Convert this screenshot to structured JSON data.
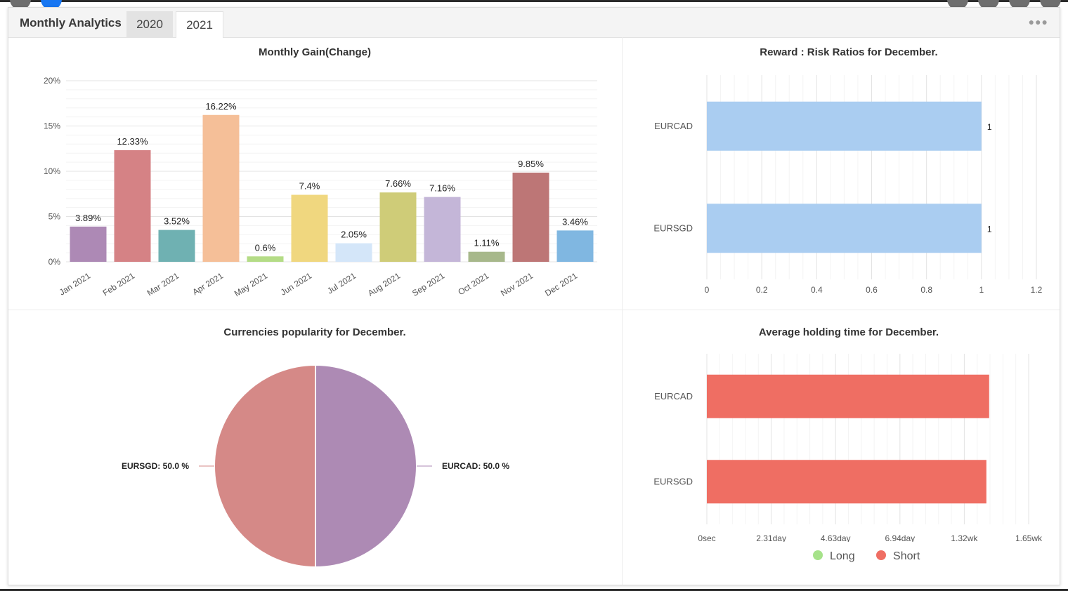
{
  "header": {
    "title": "Monthly Analytics",
    "tabs": [
      {
        "label": "2020",
        "active": false
      },
      {
        "label": "2021",
        "active": true
      }
    ]
  },
  "colors": {
    "pie_eursgd": "#d58987",
    "pie_eurcad": "#ad8ab4",
    "reward_bar": "#aacdf1",
    "holding_short": "#ef6e63",
    "legend_long": "#a6e28a",
    "legend_short": "#ef6e63"
  },
  "chart_data": [
    {
      "type": "bar",
      "title": "Monthly Gain(Change)",
      "categories": [
        "Jan 2021",
        "Feb 2021",
        "Mar 2021",
        "Apr 2021",
        "May 2021",
        "Jun 2021",
        "Jul 2021",
        "Aug 2021",
        "Sep 2021",
        "Oct 2021",
        "Nov 2021",
        "Dec 2021"
      ],
      "values": [
        3.89,
        12.33,
        3.52,
        16.22,
        0.6,
        7.4,
        2.05,
        7.66,
        7.16,
        1.11,
        9.85,
        3.46
      ],
      "data_labels": [
        "3.89%",
        "12.33%",
        "3.52%",
        "16.22%",
        "0.6%",
        "7.4%",
        "2.05%",
        "7.66%",
        "7.16%",
        "1.11%",
        "9.85%",
        "3.46%"
      ],
      "colors": [
        "#ad89b5",
        "#d58285",
        "#6fb1b2",
        "#f5bf98",
        "#b4dc86",
        "#f0d77f",
        "#d4e6f9",
        "#cfcc78",
        "#c4b6d8",
        "#a7b88b",
        "#bd7676",
        "#80b7e1"
      ],
      "yticks": [
        "0%",
        "5%",
        "10%",
        "15%",
        "20%"
      ],
      "ylim": [
        0,
        20
      ],
      "grid": true
    },
    {
      "type": "bar",
      "orientation": "horizontal",
      "title": "Reward : Risk Ratios for December.",
      "categories": [
        "EURCAD",
        "EURSGD"
      ],
      "values": [
        1,
        1
      ],
      "data_labels": [
        "1",
        "1"
      ],
      "xticks": [
        "0",
        "0.2",
        "0.4",
        "0.6",
        "0.8",
        "1",
        "1.2"
      ],
      "xlim": [
        0,
        1.2
      ],
      "grid": true
    },
    {
      "type": "pie",
      "title": "Currencies popularity for December.",
      "slices": [
        {
          "label": "EURCAD: 50.0 %",
          "value": 50.0
        },
        {
          "label": "EURSGD: 50.0 %",
          "value": 50.0
        }
      ]
    },
    {
      "type": "bar",
      "orientation": "horizontal",
      "title": "Average holding time for December.",
      "categories": [
        "EURCAD",
        "EURSGD"
      ],
      "series": [
        {
          "name": "Short",
          "values_days": [
            10.15,
            10.05
          ]
        }
      ],
      "xticks": [
        "0sec",
        "2.31day",
        "4.63day",
        "6.94day",
        "1.32wk",
        "1.65wk"
      ],
      "xlim_days": [
        0,
        11.57
      ],
      "legend": [
        "Long",
        "Short"
      ],
      "legend_position": "bottom",
      "grid": true
    }
  ]
}
